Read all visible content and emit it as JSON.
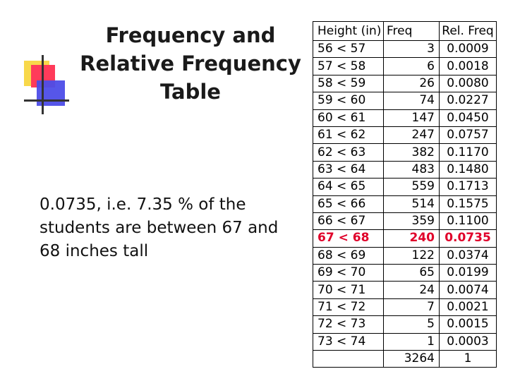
{
  "title": {
    "line1": "Frequency and",
    "line2": "Relative Frequency",
    "line3": "Table"
  },
  "note": {
    "text": "0.0735, i.e. 7.35 % of the students are between 67 and 68 inches tall"
  },
  "highlight_color": "#e0002a",
  "table": {
    "headers": [
      "Height (in)",
      "Freq",
      "Rel. Freq"
    ],
    "rows": [
      [
        "56 < 57",
        "3",
        "0.0009"
      ],
      [
        "57 < 58",
        "6",
        "0.0018"
      ],
      [
        "58 < 59",
        "26",
        "0.0080"
      ],
      [
        "59 < 60",
        "74",
        "0.0227"
      ],
      [
        "60 < 61",
        "147",
        "0.0450"
      ],
      [
        "61 < 62",
        "247",
        "0.0757"
      ],
      [
        "62 < 63",
        "382",
        "0.1170"
      ],
      [
        "63 < 64",
        "483",
        "0.1480"
      ],
      [
        "64 < 65",
        "559",
        "0.1713"
      ],
      [
        "65 < 66",
        "514",
        "0.1575"
      ],
      [
        "66 < 67",
        "359",
        "0.1100"
      ],
      [
        "67 < 68",
        "240",
        "0.0735"
      ],
      [
        "68 < 69",
        "122",
        "0.0374"
      ],
      [
        "69 < 70",
        "65",
        "0.0199"
      ],
      [
        "70 < 71",
        "24",
        "0.0074"
      ],
      [
        "71 < 72",
        "7",
        "0.0021"
      ],
      [
        "72 < 73",
        "5",
        "0.0015"
      ],
      [
        "73 < 74",
        "1",
        "0.0003"
      ]
    ],
    "highlight_row": 11,
    "totals": [
      "",
      "3264",
      "1"
    ]
  }
}
